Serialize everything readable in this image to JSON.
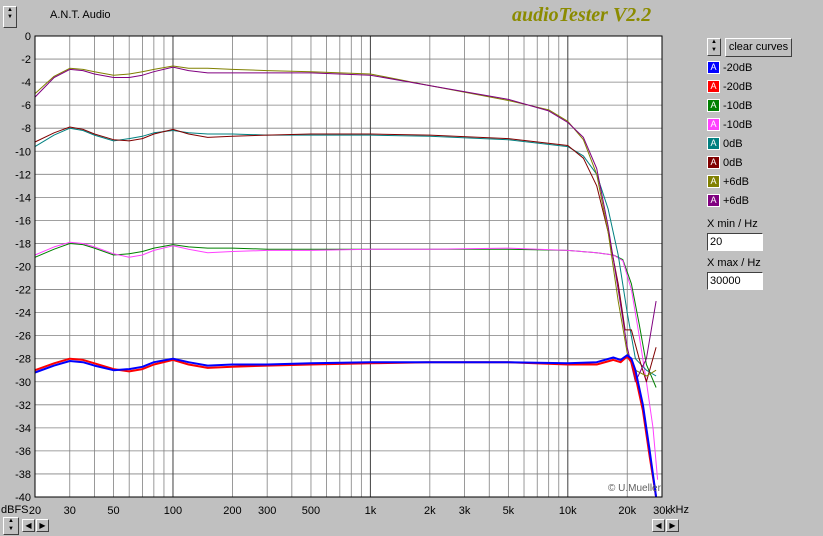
{
  "app": {
    "brand": "A.N.T. Audio",
    "title": "audioTester V2.2",
    "copyright": "© U.Mueller"
  },
  "controls": {
    "clear_label": "clear curves",
    "xmin_label": "X min / Hz",
    "xmin_value": "20",
    "xmax_label": "X max / Hz",
    "xmax_value": "30000"
  },
  "legend": [
    {
      "label": "-20dB",
      "color": "#0000ff",
      "glyph": "A"
    },
    {
      "label": "-20dB",
      "color": "#ff0000",
      "glyph": "A"
    },
    {
      "label": "-10dB",
      "color": "#008000",
      "glyph": "A"
    },
    {
      "label": "-10dB",
      "color": "#ff40ff",
      "glyph": "A"
    },
    {
      "label": "0dB",
      "color": "#008080",
      "glyph": "A"
    },
    {
      "label": "0dB",
      "color": "#800000",
      "glyph": "A"
    },
    {
      "label": "+6dB",
      "color": "#808000",
      "glyph": "A"
    },
    {
      "label": "+6dB",
      "color": "#800080",
      "glyph": "A"
    }
  ],
  "chart_data": {
    "type": "line",
    "x_scale": "log",
    "xlim": [
      20,
      30000
    ],
    "ylim": [
      -40,
      0
    ],
    "grid": true,
    "y_unit_label": "dBFS",
    "x_unit_label": "kHz",
    "y_ticks": [
      "0",
      "-2",
      "-4",
      "-6",
      "-8",
      "-10",
      "-12",
      "-14",
      "-16",
      "-18",
      "-20",
      "-22",
      "-24",
      "-26",
      "-28",
      "-30",
      "-32",
      "-34",
      "-36",
      "-38",
      "-40"
    ],
    "x_tick_labels": [
      {
        "v": 20,
        "t": "20"
      },
      {
        "v": 30,
        "t": "30"
      },
      {
        "v": 50,
        "t": "50"
      },
      {
        "v": 100,
        "t": "100"
      },
      {
        "v": 200,
        "t": "200"
      },
      {
        "v": 300,
        "t": "300"
      },
      {
        "v": 500,
        "t": "500"
      },
      {
        "v": 1000,
        "t": "1k"
      },
      {
        "v": 2000,
        "t": "2k"
      },
      {
        "v": 3000,
        "t": "3k"
      },
      {
        "v": 5000,
        "t": "5k"
      },
      {
        "v": 10000,
        "t": "10k"
      },
      {
        "v": 20000,
        "t": "20k"
      },
      {
        "v": 30000,
        "t": "30k"
      }
    ],
    "series": [
      {
        "name": "-20dB",
        "color": "#0000ff",
        "width": 2,
        "x": [
          20,
          25,
          30,
          35,
          40,
          50,
          60,
          70,
          80,
          100,
          120,
          150,
          200,
          300,
          500,
          1000,
          2000,
          5000,
          10000,
          14000,
          17000,
          18500,
          20000,
          21000,
          22000,
          24000,
          26000,
          28000
        ],
        "y": [
          -29.2,
          -28.6,
          -28.2,
          -28.3,
          -28.6,
          -29.0,
          -28.9,
          -28.7,
          -28.3,
          -28.0,
          -28.3,
          -28.6,
          -28.5,
          -28.5,
          -28.4,
          -28.3,
          -28.3,
          -28.3,
          -28.4,
          -28.3,
          -27.9,
          -28.1,
          -27.7,
          -28.0,
          -29.0,
          -32.0,
          -36.0,
          -40.0
        ]
      },
      {
        "name": "-20dB",
        "color": "#ff0000",
        "width": 2,
        "x": [
          20,
          25,
          30,
          35,
          40,
          50,
          60,
          70,
          80,
          100,
          120,
          150,
          200,
          300,
          500,
          1000,
          2000,
          5000,
          10000,
          14000,
          17000,
          18500,
          20000,
          21000,
          22000,
          24000,
          26000,
          28000
        ],
        "y": [
          -29.0,
          -28.4,
          -28.0,
          -28.1,
          -28.4,
          -28.9,
          -29.1,
          -28.9,
          -28.5,
          -28.1,
          -28.5,
          -28.8,
          -28.7,
          -28.6,
          -28.5,
          -28.4,
          -28.3,
          -28.3,
          -28.5,
          -28.5,
          -28.1,
          -28.3,
          -27.8,
          -28.3,
          -29.5,
          -32.5,
          -36.5,
          -40.0
        ]
      },
      {
        "name": "-10dB",
        "color": "#008000",
        "width": 1,
        "x": [
          20,
          25,
          30,
          35,
          40,
          50,
          60,
          70,
          80,
          100,
          120,
          150,
          200,
          300,
          500,
          1000,
          2000,
          5000,
          10000,
          14000,
          17000,
          19000,
          21000,
          23000,
          25000,
          28000
        ],
        "y": [
          -19.2,
          -18.5,
          -18.0,
          -18.1,
          -18.4,
          -19.0,
          -18.9,
          -18.7,
          -18.4,
          -18.1,
          -18.3,
          -18.4,
          -18.4,
          -18.5,
          -18.5,
          -18.5,
          -18.5,
          -18.5,
          -18.6,
          -18.8,
          -19.0,
          -19.4,
          -21.5,
          -25.0,
          -28.5,
          -30.5
        ]
      },
      {
        "name": "-10dB",
        "color": "#ff40ff",
        "width": 1,
        "x": [
          20,
          25,
          30,
          35,
          40,
          50,
          60,
          70,
          80,
          100,
          120,
          150,
          200,
          300,
          500,
          1000,
          2000,
          5000,
          10000,
          14000,
          17000,
          19000,
          21000,
          23000,
          25000,
          27000,
          28500
        ],
        "y": [
          -19.0,
          -18.3,
          -17.9,
          -18.0,
          -18.3,
          -18.9,
          -19.2,
          -19.0,
          -18.6,
          -18.2,
          -18.5,
          -18.8,
          -18.7,
          -18.6,
          -18.6,
          -18.5,
          -18.5,
          -18.4,
          -18.6,
          -18.8,
          -19.0,
          -19.5,
          -22.0,
          -26.0,
          -30.0,
          -34.0,
          -38.5
        ]
      },
      {
        "name": "0dB",
        "color": "#008080",
        "width": 1,
        "x": [
          20,
          25,
          30,
          35,
          40,
          50,
          60,
          70,
          80,
          100,
          120,
          150,
          200,
          300,
          500,
          1000,
          2000,
          5000,
          10000,
          12000,
          14000,
          16000,
          18000,
          20000,
          22000,
          25000,
          28000
        ],
        "y": [
          -9.6,
          -8.6,
          -8.0,
          -8.2,
          -8.6,
          -9.1,
          -8.9,
          -8.7,
          -8.4,
          -8.2,
          -8.4,
          -8.5,
          -8.5,
          -8.6,
          -8.6,
          -8.6,
          -8.7,
          -9.0,
          -9.6,
          -10.4,
          -12.0,
          -15.0,
          -19.0,
          -24.0,
          -28.0,
          -29.0,
          -29.5
        ]
      },
      {
        "name": "0dB",
        "color": "#800000",
        "width": 1,
        "x": [
          20,
          25,
          30,
          35,
          40,
          50,
          60,
          70,
          80,
          100,
          120,
          150,
          200,
          300,
          500,
          1000,
          2000,
          5000,
          10000,
          12000,
          14000,
          16000,
          18000,
          19500,
          21000,
          23000,
          25000,
          28000
        ],
        "y": [
          -9.2,
          -8.4,
          -7.9,
          -8.1,
          -8.5,
          -9.0,
          -9.1,
          -8.9,
          -8.5,
          -8.1,
          -8.5,
          -8.8,
          -8.7,
          -8.6,
          -8.5,
          -8.5,
          -8.6,
          -8.9,
          -9.5,
          -10.6,
          -13.0,
          -17.0,
          -21.5,
          -25.5,
          -25.5,
          -28.0,
          -30.0,
          -27.0
        ]
      },
      {
        "name": "+6dB",
        "color": "#808000",
        "width": 1,
        "x": [
          20,
          25,
          30,
          35,
          40,
          50,
          60,
          70,
          80,
          100,
          120,
          150,
          200,
          300,
          500,
          1000,
          2000,
          5000,
          8000,
          10000,
          12000,
          14000,
          16000,
          18000,
          20000,
          22000,
          25000,
          28000
        ],
        "y": [
          -5.0,
          -3.5,
          -2.8,
          -2.9,
          -3.1,
          -3.4,
          -3.3,
          -3.1,
          -2.9,
          -2.6,
          -2.8,
          -2.8,
          -2.9,
          -3.0,
          -3.1,
          -3.3,
          -4.3,
          -5.6,
          -6.4,
          -7.4,
          -9.0,
          -12.0,
          -17.0,
          -23.0,
          -27.5,
          -29.0,
          -29.5,
          -29.0
        ]
      },
      {
        "name": "+6dB",
        "color": "#800080",
        "width": 1,
        "x": [
          20,
          25,
          30,
          35,
          40,
          50,
          60,
          70,
          80,
          100,
          120,
          150,
          200,
          300,
          500,
          1000,
          2000,
          5000,
          8000,
          10000,
          12000,
          14000,
          16000,
          18000,
          20000,
          22000,
          25000,
          28000
        ],
        "y": [
          -5.3,
          -3.6,
          -2.9,
          -3.0,
          -3.3,
          -3.6,
          -3.6,
          -3.4,
          -3.1,
          -2.7,
          -3.0,
          -3.2,
          -3.2,
          -3.2,
          -3.2,
          -3.4,
          -4.3,
          -5.5,
          -6.5,
          -7.5,
          -8.8,
          -11.5,
          -16.5,
          -22.0,
          -27.0,
          -30.0,
          -28.0,
          -23.0
        ]
      }
    ]
  }
}
